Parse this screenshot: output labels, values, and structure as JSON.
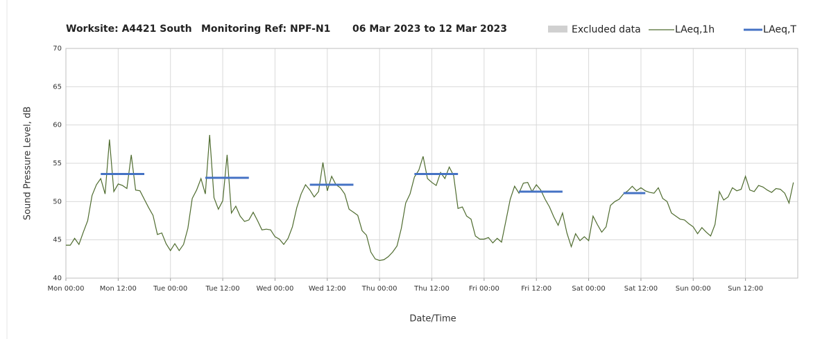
{
  "chart_data": {
    "type": "line",
    "title": [
      "Worksite: A4421 South",
      "Monitoring Ref: NPF-N1",
      "06 Mar 2023 to 12 Mar 2023"
    ],
    "xlabel": "Date/Time",
    "ylabel": "Sound Pressure Level, dB",
    "xlim": [
      0,
      168
    ],
    "ylim": [
      40,
      70
    ],
    "yticks": [
      40,
      45,
      50,
      55,
      60,
      65,
      70
    ],
    "xticks": [
      {
        "value": 0,
        "label": "Mon 00:00"
      },
      {
        "value": 12,
        "label": "Mon 12:00"
      },
      {
        "value": 24,
        "label": "Tue 00:00"
      },
      {
        "value": 36,
        "label": "Tue 12:00"
      },
      {
        "value": 48,
        "label": "Wed 00:00"
      },
      {
        "value": 60,
        "label": "Wed 12:00"
      },
      {
        "value": 72,
        "label": "Thu 00:00"
      },
      {
        "value": 84,
        "label": "Thu 12:00"
      },
      {
        "value": 96,
        "label": "Fri 00:00"
      },
      {
        "value": 108,
        "label": "Fri 12:00"
      },
      {
        "value": 120,
        "label": "Sat 00:00"
      },
      {
        "value": 132,
        "label": "Sat 12:00"
      },
      {
        "value": 144,
        "label": "Sun 00:00"
      },
      {
        "value": 156,
        "label": "Sun 12:00"
      }
    ],
    "grid": true,
    "excluded": {
      "name": "Excluded data",
      "color": "#d0d0d0"
    },
    "line": {
      "name": "LAeq,1h",
      "color": "#4e6b2e",
      "x": [
        0,
        1,
        2,
        3,
        4,
        5,
        6,
        7,
        8,
        9,
        10,
        11,
        12,
        13,
        14,
        15,
        16,
        17,
        18,
        19,
        20,
        21,
        22,
        23,
        24,
        25,
        26,
        27,
        28,
        29,
        30,
        31,
        32,
        33,
        34,
        35,
        36,
        37,
        38,
        39,
        40,
        41,
        42,
        43,
        44,
        45,
        46,
        47,
        48,
        49,
        50,
        51,
        52,
        53,
        54,
        55,
        56,
        57,
        58,
        59,
        60,
        61,
        62,
        63,
        64,
        65,
        66,
        67,
        68,
        69,
        70,
        71,
        72,
        73,
        74,
        75,
        76,
        77,
        78,
        79,
        80,
        81,
        82,
        83,
        84,
        85,
        86,
        87,
        88,
        89,
        90,
        91,
        92,
        93,
        94,
        95,
        96,
        97,
        98,
        99,
        100,
        101,
        102,
        103,
        104,
        105,
        106,
        107,
        108,
        109,
        110,
        111,
        112,
        113,
        114,
        115,
        116,
        117,
        118,
        119,
        120,
        121,
        122,
        123,
        124,
        125,
        126,
        127,
        128,
        129,
        130,
        131,
        132,
        133,
        134,
        135,
        136,
        137,
        138,
        139,
        140,
        141,
        142,
        143,
        144,
        145,
        146,
        147,
        148,
        149,
        150,
        151,
        152,
        153,
        154,
        155,
        156,
        157,
        158,
        159,
        160,
        161,
        162,
        163,
        164,
        165,
        166,
        167
      ],
      "values": [
        44.3,
        44.3,
        45.2,
        44.4,
        46,
        47.5,
        50.8,
        52.2,
        53,
        51,
        58.1,
        51.3,
        52.3,
        52.1,
        51.7,
        56.1,
        51.5,
        51.4,
        50.3,
        49.2,
        48.2,
        45.7,
        45.9,
        44.5,
        43.6,
        44.5,
        43.6,
        44.4,
        46.5,
        50.4,
        51.5,
        53,
        51,
        58.7,
        50.5,
        49,
        50.1,
        56.1,
        48.5,
        49.4,
        48.1,
        47.4,
        47.6,
        48.6,
        47.5,
        46.3,
        46.4,
        46.3,
        45.4,
        45.1,
        44.4,
        45.2,
        46.7,
        49.2,
        51,
        52.2,
        51.5,
        50.6,
        51.3,
        55.1,
        51.4,
        53.3,
        52.2,
        51.8,
        51,
        49,
        48.6,
        48.2,
        46.2,
        45.6,
        43.4,
        42.5,
        42.3,
        42.4,
        42.8,
        43.4,
        44.2,
        46.5,
        49.8,
        51,
        53.2,
        54.1,
        55.9,
        53,
        52.5,
        52.1,
        53.8,
        53,
        54.5,
        53.4,
        49.1,
        49.3,
        48.1,
        47.7,
        45.5,
        45.1,
        45.1,
        45.3,
        44.6,
        45.2,
        44.7,
        47.5,
        50.3,
        52,
        51.1,
        52.4,
        52.5,
        51.3,
        52.2,
        51.5,
        50.3,
        49.3,
        48,
        46.9,
        48.5,
        45.9,
        44.1,
        45.8,
        44.9,
        45.4,
        44.9,
        48.1,
        47,
        46,
        46.7,
        49.5,
        50,
        50.3,
        51,
        51.4,
        52,
        51.4,
        51.8,
        51.4,
        51.2,
        51.1,
        51.8,
        50.4,
        50,
        48.5,
        48.1,
        47.7,
        47.6,
        47.1,
        46.7,
        45.8,
        46.6,
        46,
        45.5,
        47,
        51.3,
        50.2,
        50.6,
        51.8,
        51.4,
        51.6,
        53.3,
        51.5,
        51.3,
        52.1,
        51.9,
        51.5,
        51.2,
        51.7,
        51.6,
        51.1,
        49.8,
        52.5
      ]
    },
    "periods": {
      "name": "LAeq,T",
      "color": "#4472c4",
      "x_start": [
        8,
        32,
        56,
        80,
        104,
        128
      ],
      "x_end": [
        18,
        42,
        66,
        90,
        114,
        133
      ],
      "values": [
        53.6,
        53.1,
        52.2,
        53.6,
        51.3,
        51.1
      ]
    }
  }
}
